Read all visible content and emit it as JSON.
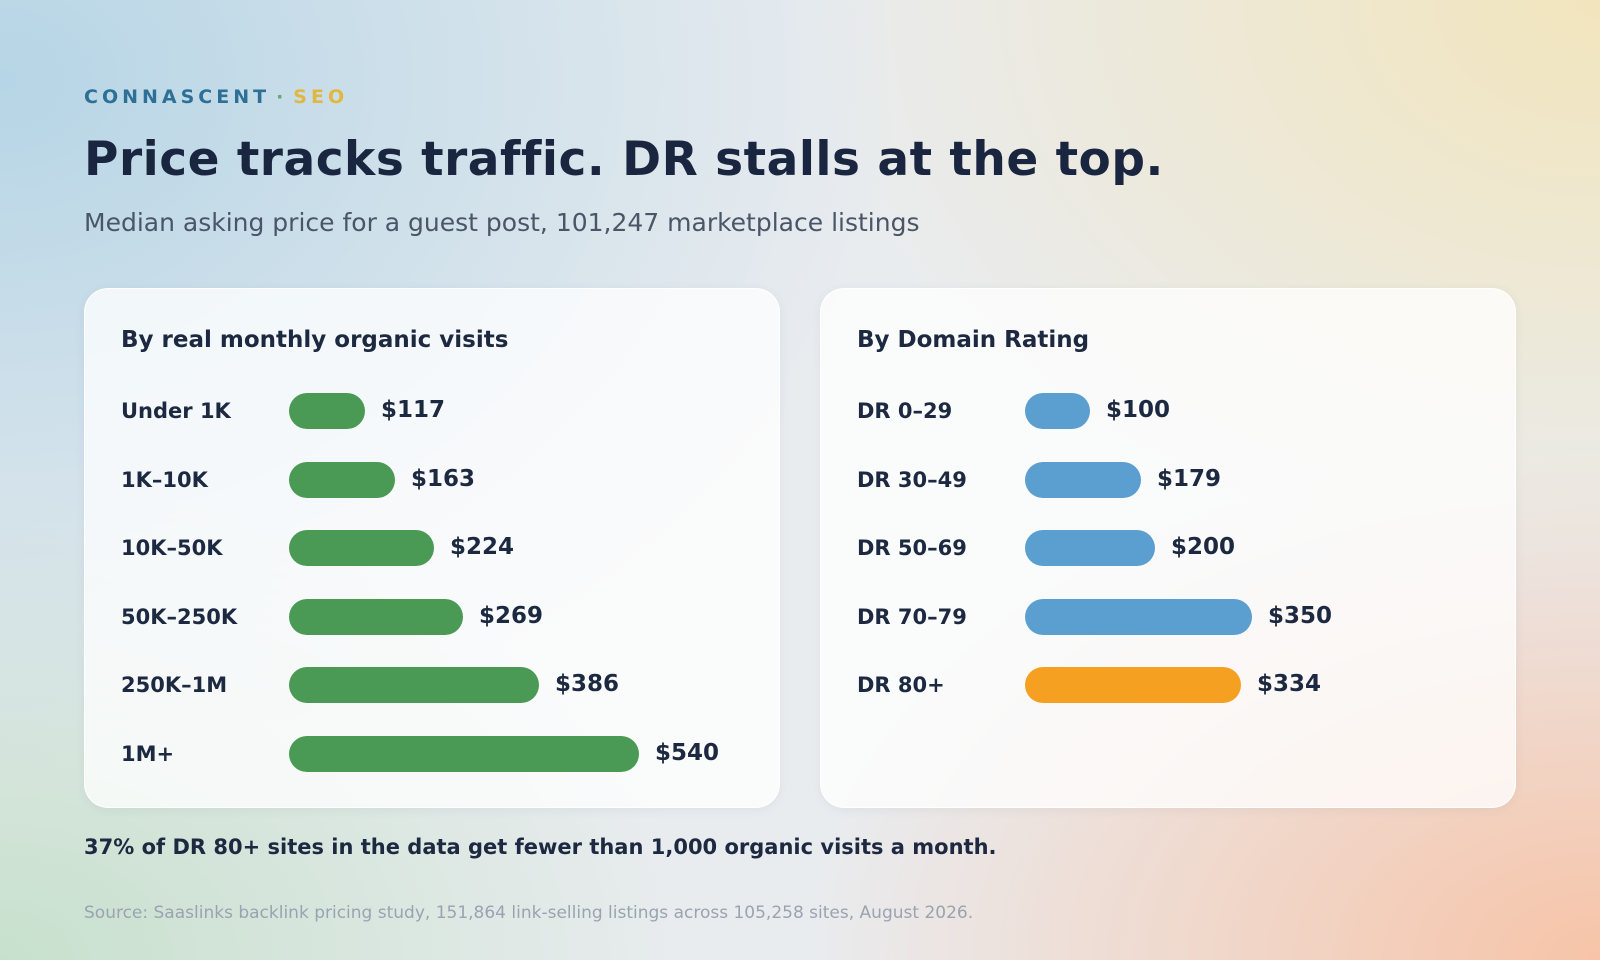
{
  "eyebrow": {
    "brand": "CONNASCENT",
    "separator": "·",
    "section": "SEO"
  },
  "title": "Price tracks traffic. DR stalls at the top.",
  "subtitle": "Median asking price for a guest post, 101,247 marketplace listings",
  "colors": {
    "traffic_bar": "#4a9a55",
    "dr_bar": "#5a9fd0",
    "dr_highlight": "#f5a020",
    "brand": "#2e6f96",
    "section": "#e0b83f"
  },
  "chart_data": [
    {
      "type": "bar",
      "orientation": "horizontal",
      "title": "By real monthly organic visits",
      "categories": [
        "Under 1K",
        "1K–10K",
        "10K–50K",
        "50K–250K",
        "250K–1M",
        "1M+"
      ],
      "values": [
        117,
        163,
        224,
        269,
        386,
        540
      ],
      "value_labels": [
        "$117",
        "$163",
        "$224",
        "$269",
        "$386",
        "$540"
      ],
      "unit": "USD",
      "xlim": [
        0,
        540
      ],
      "grid": false
    },
    {
      "type": "bar",
      "orientation": "horizontal",
      "title": "By Domain Rating",
      "categories": [
        "DR 0–29",
        "DR 30–49",
        "DR 50–69",
        "DR 70–79",
        "DR 80+"
      ],
      "values": [
        100,
        179,
        200,
        350,
        334
      ],
      "value_labels": [
        "$100",
        "$179",
        "$200",
        "$350",
        "$334"
      ],
      "highlight": "DR 80+",
      "unit": "USD",
      "xlim": [
        0,
        540
      ],
      "grid": false
    }
  ],
  "note": "37% of DR 80+ sites in the data get fewer than 1,000 organic visits a month.",
  "source": "Source: Saaslinks backlink pricing study, 151,864 link-selling listings across 105,258 sites, August 2026."
}
